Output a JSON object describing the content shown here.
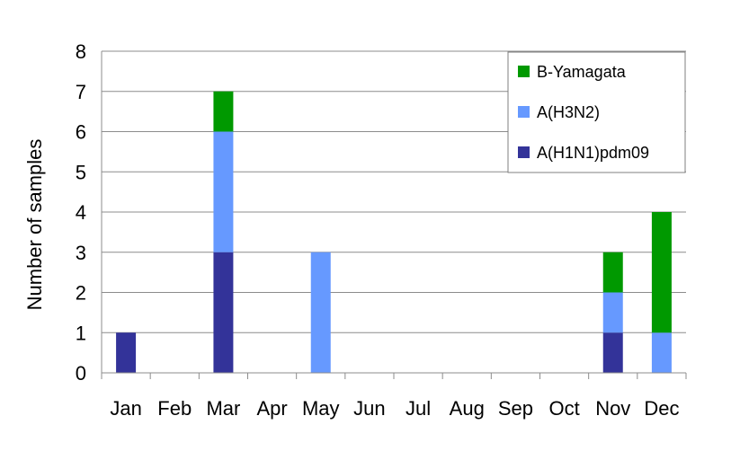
{
  "chart_data": {
    "type": "bar",
    "stacked": true,
    "title": "",
    "xlabel": "",
    "ylabel": "Number of samples",
    "ylim": [
      0,
      8
    ],
    "yticks": [
      0,
      1,
      2,
      3,
      4,
      5,
      6,
      7,
      8
    ],
    "grid": true,
    "legend_position": "top-right",
    "categories": [
      "Jan",
      "Feb",
      "Mar",
      "Apr",
      "May",
      "Jun",
      "Jul",
      "Aug",
      "Sep",
      "Oct",
      "Nov",
      "Dec"
    ],
    "series": [
      {
        "name": "A(H1N1)pdm09",
        "color": "#333399",
        "values": [
          1,
          0,
          3,
          0,
          0,
          0,
          0,
          0,
          0,
          0,
          1,
          0
        ]
      },
      {
        "name": "A(H3N2)",
        "color": "#6699ff",
        "values": [
          0,
          0,
          3,
          0,
          3,
          0,
          0,
          0,
          0,
          0,
          1,
          1
        ]
      },
      {
        "name": "B-Yamagata",
        "color": "#009900",
        "values": [
          0,
          0,
          1,
          0,
          0,
          0,
          0,
          0,
          0,
          0,
          1,
          3
        ]
      }
    ],
    "legend_order": [
      "B-Yamagata",
      "A(H3N2)",
      "A(H1N1)pdm09"
    ]
  }
}
